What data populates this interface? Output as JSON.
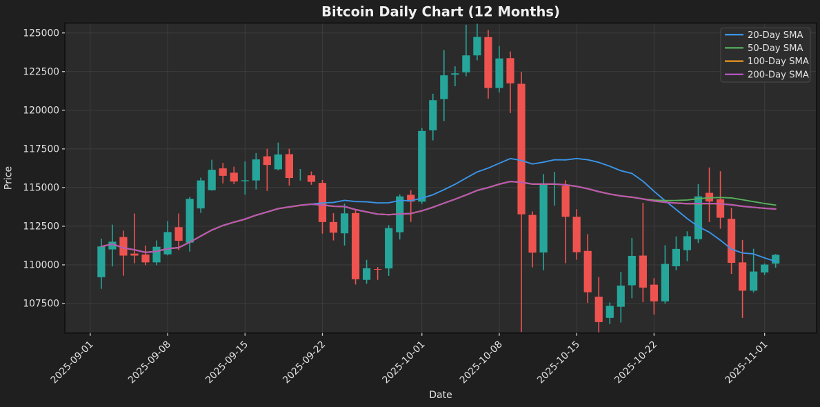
{
  "title": "Bitcoin Daily Chart (12 Months)",
  "xlabel": "Date",
  "ylabel": "Price",
  "legend": {
    "position": "upper right",
    "items": [
      {
        "label": "20-Day SMA",
        "color": "#3a95e8",
        "window": 20
      },
      {
        "label": "50-Day SMA",
        "color": "#56b15c",
        "window": 50
      },
      {
        "label": "100-Day SMA",
        "color": "#f09c1e",
        "window": 100
      },
      {
        "label": "200-Day SMA",
        "color": "#b553c2",
        "window": 200
      }
    ]
  },
  "colors": {
    "figure_background": "#1f1f1f",
    "axes_background": "#2b2b2b",
    "grid": "#3d3d3d",
    "spine": "#111111",
    "text": "#e2e2e2",
    "title_text": "#f0f0f0",
    "candle_up": "#26a69a",
    "candle_down": "#ef5350"
  },
  "chart_data": {
    "type": "candlestick",
    "x_unit": "date",
    "dates": [
      "2025-09-02",
      "2025-09-03",
      "2025-09-04",
      "2025-09-05",
      "2025-09-06",
      "2025-09-07",
      "2025-09-08",
      "2025-09-09",
      "2025-09-10",
      "2025-09-11",
      "2025-09-12",
      "2025-09-13",
      "2025-09-14",
      "2025-09-15",
      "2025-09-16",
      "2025-09-17",
      "2025-09-18",
      "2025-09-19",
      "2025-09-20",
      "2025-09-21",
      "2025-09-22",
      "2025-09-23",
      "2025-09-24",
      "2025-09-25",
      "2025-09-26",
      "2025-09-27",
      "2025-09-28",
      "2025-09-29",
      "2025-09-30",
      "2025-10-01",
      "2025-10-02",
      "2025-10-03",
      "2025-10-04",
      "2025-10-05",
      "2025-10-06",
      "2025-10-07",
      "2025-10-08",
      "2025-10-09",
      "2025-10-10",
      "2025-10-11",
      "2025-10-12",
      "2025-10-13",
      "2025-10-14",
      "2025-10-15",
      "2025-10-16",
      "2025-10-17",
      "2025-10-18",
      "2025-10-19",
      "2025-10-20",
      "2025-10-21",
      "2025-10-22",
      "2025-10-23",
      "2025-10-24",
      "2025-10-25",
      "2025-10-26",
      "2025-10-27",
      "2025-10-28",
      "2025-10-29",
      "2025-10-30",
      "2025-10-31",
      "2025-11-01",
      "2025-11-02"
    ],
    "open": [
      109200,
      111000,
      111800,
      110730,
      110670,
      110160,
      110680,
      112440,
      111440,
      113650,
      114830,
      116240,
      115960,
      115410,
      115460,
      117020,
      116180,
      117160,
      115755,
      115790,
      115300,
      112770,
      112040,
      113350,
      109030,
      109730,
      109770,
      112110,
      114530,
      114090,
      118700,
      120720,
      122300,
      122450,
      123550,
      124730,
      121440,
      123370,
      121710,
      113230,
      110800,
      115180,
      115110,
      113110,
      110900,
      107940,
      106570,
      107290,
      108680,
      110600,
      108720,
      107640,
      109910,
      110950,
      111660,
      114660,
      114240,
      112980,
      110160,
      108330,
      109510,
      110080
    ],
    "high": [
      111700,
      112600,
      112210,
      113320,
      111250,
      111580,
      112830,
      113320,
      114400,
      115640,
      116800,
      116600,
      116350,
      116690,
      117230,
      117510,
      117910,
      117510,
      116200,
      116040,
      115490,
      113340,
      113960,
      113590,
      110320,
      109860,
      112570,
      114550,
      114820,
      118850,
      121070,
      123890,
      122840,
      125530,
      125620,
      125190,
      124140,
      123800,
      122480,
      113460,
      115870,
      116020,
      115470,
      113600,
      111990,
      109210,
      107570,
      109550,
      111740,
      114010,
      109140,
      111270,
      111840,
      112170,
      115220,
      116300,
      116060,
      113690,
      111610,
      111040,
      110090,
      110700
    ],
    "low": [
      108450,
      109900,
      109300,
      110100,
      109980,
      109980,
      110610,
      110950,
      110860,
      113360,
      114800,
      115270,
      115220,
      114540,
      114880,
      114780,
      116110,
      115130,
      115450,
      115180,
      112020,
      111580,
      111250,
      108730,
      108780,
      109030,
      109290,
      111640,
      112780,
      113950,
      118050,
      119300,
      121550,
      122200,
      123230,
      120750,
      121150,
      119820,
      105660,
      109840,
      109650,
      113830,
      110100,
      110330,
      107540,
      105620,
      106170,
      106270,
      107840,
      107590,
      106790,
      107490,
      109650,
      110240,
      111420,
      112770,
      112340,
      109420,
      106570,
      108210,
      109340,
      109820
    ],
    "close": [
      111190,
      111500,
      110600,
      110600,
      110160,
      111170,
      112120,
      111560,
      114270,
      115460,
      116150,
      115760,
      115390,
      115470,
      116820,
      116460,
      117140,
      115620,
      115755,
      115370,
      112770,
      112080,
      113330,
      109070,
      109780,
      109690,
      112380,
      114430,
      114090,
      118660,
      120650,
      122260,
      122390,
      123550,
      124740,
      121440,
      123350,
      121740,
      113270,
      110790,
      115180,
      115210,
      113110,
      110820,
      108230,
      106300,
      107350,
      108660,
      110580,
      108530,
      107640,
      110060,
      111030,
      111850,
      114430,
      114100,
      113050,
      110130,
      108330,
      109570,
      110020,
      110650
    ],
    "overlays": [
      {
        "name": "20-Day SMA",
        "kind": "sma",
        "window": 20,
        "min_periods": 1
      },
      {
        "name": "50-Day SMA",
        "kind": "sma",
        "window": 50,
        "min_periods": 1
      },
      {
        "name": "100-Day SMA",
        "kind": "sma",
        "window": 100,
        "min_periods": 1
      },
      {
        "name": "200-Day SMA",
        "kind": "sma",
        "window": 200,
        "min_periods": 1
      }
    ],
    "ylim": [
      105590,
      125640
    ],
    "xlim_index": [
      -3.3,
      64.7
    ],
    "yticks": [
      107500,
      110000,
      112500,
      115000,
      117500,
      120000,
      122500,
      125000
    ],
    "xticks": [
      "2025-09-01",
      "2025-09-08",
      "2025-09-15",
      "2025-09-22",
      "2025-10-01",
      "2025-10-08",
      "2025-10-15",
      "2025-10-22",
      "2025-11-01"
    ],
    "grid": true,
    "legend_position": "upper right"
  }
}
